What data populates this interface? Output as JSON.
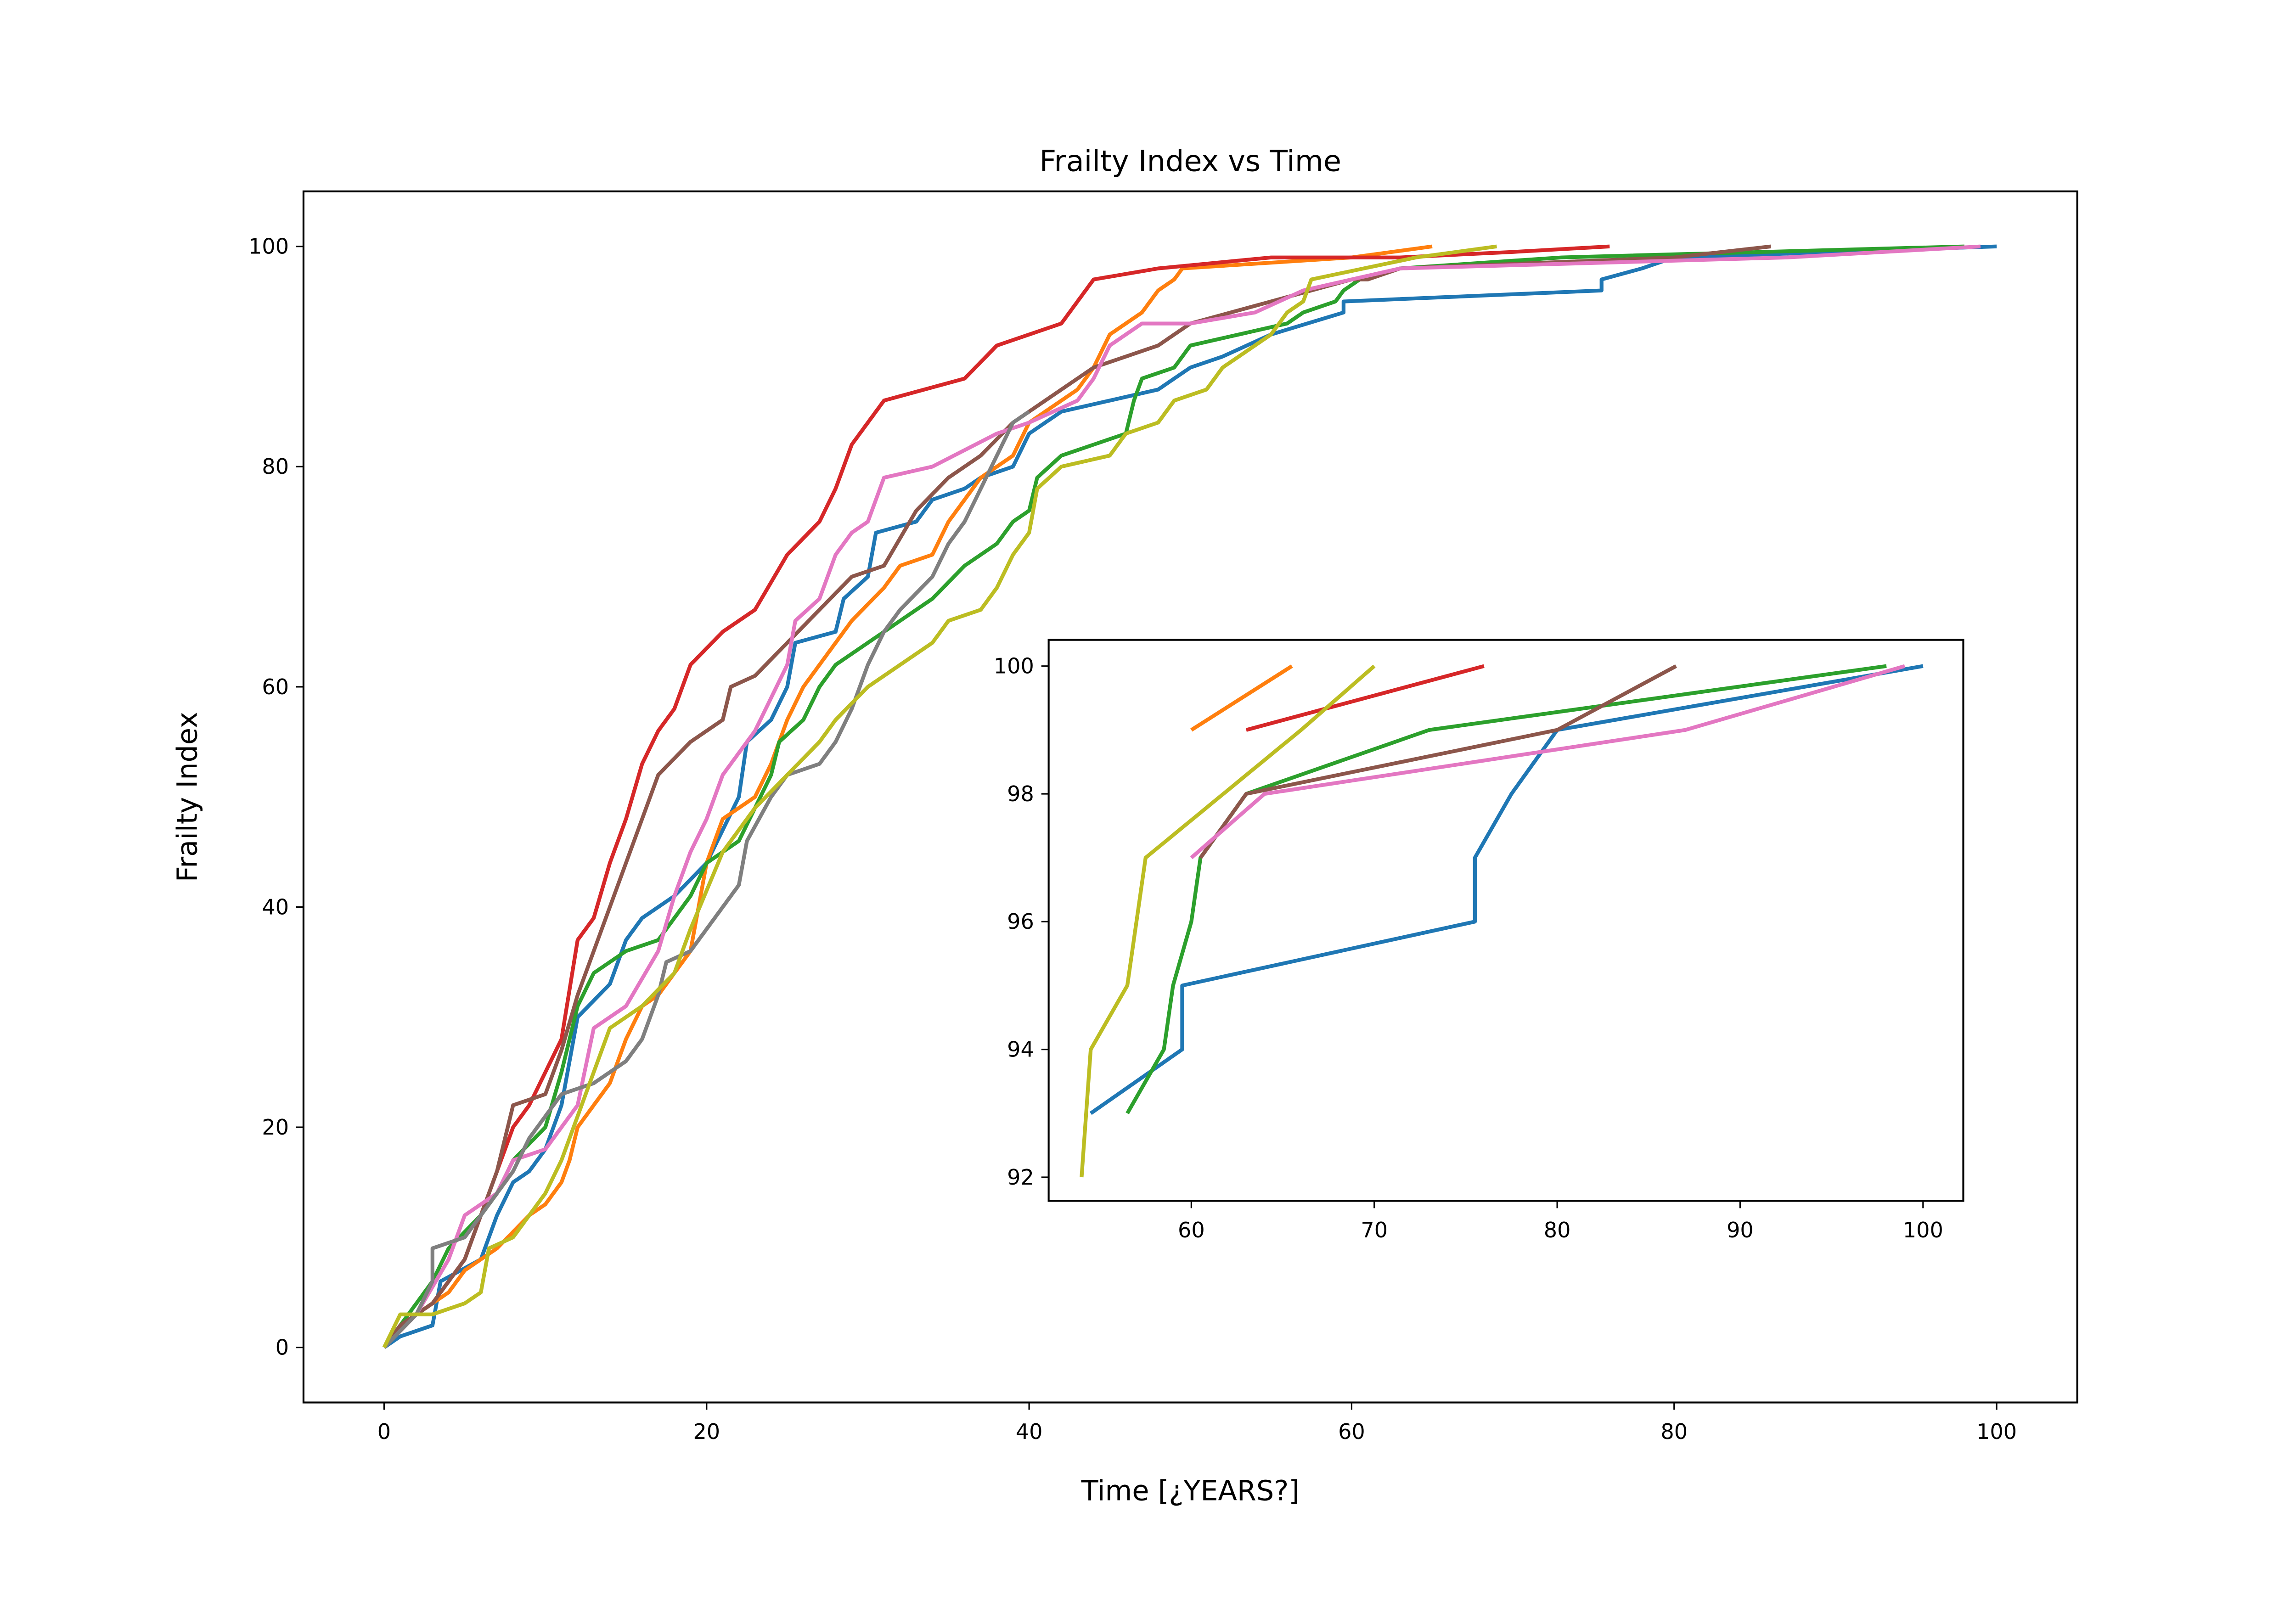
{
  "chart_data": [
    {
      "type": "line",
      "title": "Frailty Index vs Time",
      "xlabel": "Time [¿YEARS?]",
      "ylabel": "Frailty Index",
      "xlim": [
        -5,
        105
      ],
      "ylim": [
        -5,
        105
      ],
      "xticks": [
        0,
        20,
        40,
        60,
        80,
        100
      ],
      "yticks": [
        0,
        20,
        40,
        60,
        80,
        100
      ],
      "grid": false,
      "series": [
        {
          "color": "#1f77b4",
          "x": [
            0,
            1,
            3,
            3.5,
            6,
            7,
            8,
            9,
            10,
            11,
            12,
            14,
            15,
            16,
            18,
            20,
            21,
            22,
            22.5,
            24,
            25,
            25.5,
            28,
            28.5,
            30,
            30.5,
            33,
            34,
            36,
            37,
            39,
            40,
            42,
            45,
            48,
            50,
            52,
            55,
            59.5,
            59.5,
            75.5,
            75.5,
            78,
            80,
            100
          ],
          "values": [
            0,
            1,
            2,
            6,
            8,
            12,
            15,
            16,
            18,
            22,
            30,
            33,
            37,
            39,
            41,
            44,
            47,
            50,
            55,
            57,
            60,
            64,
            65,
            68,
            70,
            74,
            75,
            77,
            78,
            79,
            80,
            83,
            85,
            86,
            87,
            89,
            90,
            92,
            94,
            95,
            96,
            97,
            98,
            99,
            100
          ]
        },
        {
          "color": "#ff7f0e",
          "x": [
            0,
            2,
            4,
            5,
            7,
            9,
            10,
            11,
            11.5,
            12,
            13,
            14,
            15,
            16,
            17,
            18,
            19,
            19.5,
            20,
            21,
            22,
            23,
            24,
            25,
            26,
            27,
            28,
            29,
            31,
            32,
            34,
            35,
            36,
            37,
            39,
            40,
            42,
            43,
            44,
            45,
            47,
            48,
            49,
            49.5,
            60,
            65
          ],
          "values": [
            0,
            3,
            5,
            7,
            9,
            12,
            13,
            15,
            17,
            20,
            22,
            24,
            28,
            31,
            32,
            34,
            36,
            40,
            44,
            48,
            49,
            50,
            53,
            57,
            60,
            62,
            64,
            66,
            69,
            71,
            72,
            75,
            77,
            79,
            81,
            84,
            86,
            87,
            89,
            92,
            94,
            96,
            97,
            98,
            99,
            100
          ]
        },
        {
          "color": "#2ca02c",
          "x": [
            0,
            1,
            3,
            4,
            6,
            7,
            8,
            10,
            11,
            12,
            13,
            15,
            17,
            19,
            20,
            22,
            23,
            24,
            24.5,
            26,
            27,
            28,
            30,
            32,
            34,
            36,
            38,
            39,
            40,
            40.5,
            42,
            44,
            46,
            46.5,
            47,
            49,
            50,
            53,
            56,
            57,
            59,
            59.5,
            60.5,
            63,
            73,
            98
          ],
          "values": [
            0,
            2,
            6,
            9,
            12,
            14,
            17,
            20,
            25,
            31,
            34,
            36,
            37,
            41,
            44,
            46,
            49,
            52,
            55,
            57,
            60,
            62,
            64,
            66,
            68,
            71,
            73,
            75,
            76,
            79,
            81,
            82,
            83,
            86,
            88,
            89,
            91,
            92,
            93,
            94,
            95,
            96,
            97,
            98,
            99,
            100
          ]
        },
        {
          "color": "#d62728",
          "x": [
            0,
            1,
            3,
            5,
            6,
            7,
            8,
            9,
            10,
            11,
            12,
            13,
            14,
            15,
            16,
            17,
            18,
            19,
            21,
            23,
            25,
            27,
            28,
            29,
            30,
            31,
            36,
            38,
            40,
            42,
            44,
            48,
            55,
            63,
            70,
            76
          ],
          "values": [
            0,
            2,
            4,
            8,
            12,
            16,
            20,
            22,
            25,
            28,
            37,
            39,
            44,
            48,
            53,
            56,
            58,
            62,
            65,
            67,
            72,
            75,
            78,
            82,
            84,
            86,
            88,
            91,
            92,
            93,
            97,
            98,
            99,
            99,
            99.5,
            100
          ]
        },
        {
          "color": "#8c564b",
          "x": [
            0,
            1,
            3,
            5,
            7,
            8,
            10,
            11,
            12,
            14,
            16,
            17,
            19,
            21,
            21.5,
            23,
            25,
            27,
            29,
            31,
            33,
            35,
            37,
            39,
            42,
            44,
            46,
            48,
            50,
            55,
            60,
            61,
            63,
            80,
            86
          ],
          "values": [
            0,
            2,
            4,
            8,
            16,
            22,
            23,
            27,
            32,
            40,
            48,
            52,
            55,
            57,
            60,
            61,
            64,
            67,
            70,
            71,
            76,
            79,
            81,
            84,
            87,
            89,
            90,
            91,
            93,
            95,
            97,
            97,
            98,
            99,
            100
          ]
        },
        {
          "color": "#e377c2",
          "x": [
            0,
            2,
            4,
            5,
            7,
            8,
            10,
            12,
            13,
            15,
            17,
            18,
            19,
            20,
            21,
            23,
            25,
            25.5,
            27,
            28,
            29,
            30,
            31,
            34,
            38,
            40,
            43,
            44,
            45,
            47,
            50,
            54,
            57,
            60,
            63,
            87,
            99
          ],
          "values": [
            0,
            3,
            8,
            12,
            14,
            17,
            18,
            22,
            29,
            31,
            36,
            41,
            45,
            48,
            52,
            56,
            62,
            66,
            68,
            72,
            74,
            75,
            79,
            80,
            83,
            84,
            86,
            88,
            91,
            93,
            93,
            94,
            96,
            97,
            98,
            99,
            100
          ]
        },
        {
          "color": "#7f7f7f",
          "x": [
            0,
            2,
            3,
            3,
            5,
            6,
            8,
            9,
            10,
            11,
            13,
            15,
            16,
            17,
            17.5,
            19,
            20,
            21,
            22,
            22.5,
            24,
            25,
            27,
            28,
            29,
            30,
            31,
            32,
            34,
            35,
            36,
            37,
            38,
            39,
            40
          ],
          "values": [
            0,
            3,
            6,
            9,
            10,
            12,
            16,
            19,
            21,
            23,
            24,
            26,
            28,
            32,
            35,
            36,
            38,
            40,
            42,
            46,
            50,
            52,
            53,
            55,
            58,
            62,
            65,
            67,
            70,
            73,
            75,
            78,
            81,
            84,
            85
          ]
        },
        {
          "color": "#bcbd22",
          "x": [
            0,
            1,
            3,
            5,
            6,
            6.5,
            8,
            9,
            10,
            11,
            12,
            13,
            14,
            16,
            18,
            19,
            21,
            23,
            25,
            27,
            28,
            30,
            32,
            34,
            35,
            37,
            38,
            39,
            40,
            40.5,
            42,
            45,
            46,
            48,
            49,
            51,
            52,
            53,
            55,
            56,
            57,
            57.5,
            64,
            69
          ],
          "values": [
            0,
            3,
            3,
            4,
            5,
            9,
            10,
            12,
            14,
            17,
            21,
            25,
            29,
            31,
            34,
            38,
            45,
            49,
            52,
            55,
            57,
            60,
            62,
            64,
            66,
            67,
            69,
            72,
            74,
            78,
            80,
            81,
            83,
            84,
            86,
            87,
            89,
            90,
            92,
            94,
            95,
            97,
            99,
            100
          ]
        }
      ]
    },
    {
      "type": "line",
      "xlim": [
        52.2,
        102.2
      ],
      "ylim": [
        91.63,
        100.41
      ],
      "xticks": [
        60,
        70,
        80,
        90,
        100
      ],
      "yticks": [
        92,
        94,
        96,
        98,
        100
      ],
      "grid": false,
      "series": [
        {
          "color": "#1f77b4",
          "x": [
            54.5,
            59.5,
            59.5,
            75.5,
            75.5,
            77.5,
            80,
            100
          ],
          "values": [
            93,
            94,
            95,
            96,
            97,
            98,
            99,
            100
          ]
        },
        {
          "color": "#ff7f0e",
          "x": [
            60,
            65.5
          ],
          "values": [
            99,
            100
          ]
        },
        {
          "color": "#2ca02c",
          "x": [
            56.5,
            58.5,
            59,
            60,
            60.5,
            63,
            73,
            98
          ],
          "values": [
            93,
            94,
            95,
            96,
            97,
            98,
            99,
            100
          ]
        },
        {
          "color": "#d62728",
          "x": [
            63,
            76
          ],
          "values": [
            99,
            100
          ]
        },
        {
          "color": "#8c564b",
          "x": [
            60.5,
            63,
            80,
            86.5
          ],
          "values": [
            97,
            98,
            99,
            100
          ]
        },
        {
          "color": "#e377c2",
          "x": [
            60,
            64,
            87,
            99
          ],
          "values": [
            97,
            98,
            99,
            100
          ]
        },
        {
          "color": "#bcbd22",
          "x": [
            54,
            54.5,
            56.5,
            57,
            57.5,
            66,
            70
          ],
          "values": [
            92,
            94,
            95,
            96,
            97,
            99,
            100
          ]
        }
      ]
    }
  ]
}
